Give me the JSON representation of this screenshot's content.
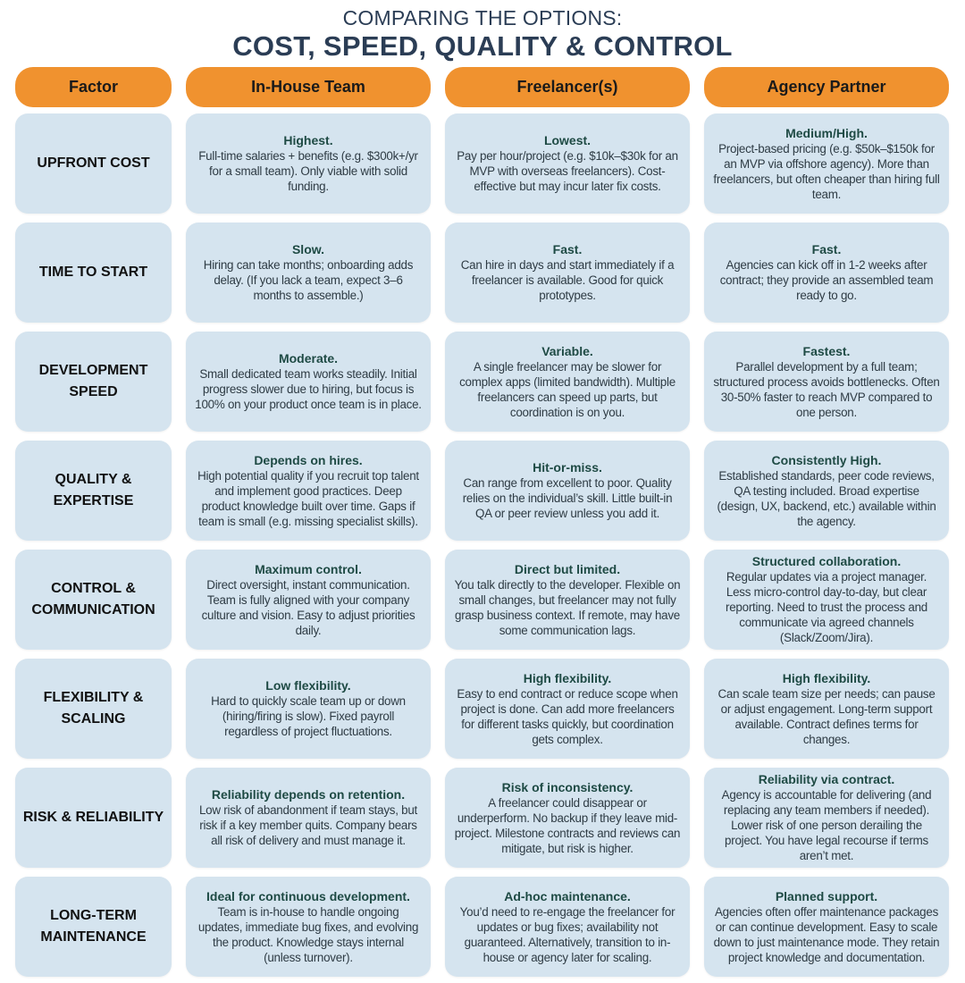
{
  "title": {
    "line1": "COMPARING THE OPTIONS:",
    "line2": "COST, SPEED, QUALITY & CONTROL"
  },
  "colors": {
    "header_bg": "#f0922f",
    "card_bg": "#d5e4ef",
    "title": "#2b3d55",
    "cell_heading": "#1e4a44"
  },
  "headers": [
    "Factor",
    "In-House Team",
    "Freelancer(s)",
    "Agency Partner"
  ],
  "rows": [
    {
      "factor": "UPFRONT COST",
      "cells": [
        {
          "h": "Highest.",
          "b": "Full-time salaries + benefits (e.g. $300k+/yr for a small team). Only viable with solid funding."
        },
        {
          "h": "Lowest.",
          "b": "Pay per hour/project (e.g. $10k–$30k for an MVP with overseas freelancers). Cost-effective but may incur later fix costs."
        },
        {
          "h": "Medium/High.",
          "b": "Project-based pricing (e.g. $50k–$150k for an MVP via offshore agency). More than freelancers, but often cheaper than hiring full team."
        }
      ]
    },
    {
      "factor": "TIME TO START",
      "cells": [
        {
          "h": "Slow.",
          "b": "Hiring can take months; onboarding adds delay. (If you lack a team, expect 3–6 months to assemble.)"
        },
        {
          "h": "Fast.",
          "b": "Can hire in days and start immediately if a freelancer is available. Good for quick prototypes."
        },
        {
          "h": "Fast.",
          "b": "Agencies can kick off in 1-2 weeks after contract; they provide an assembled team ready to go."
        }
      ]
    },
    {
      "factor": "DEVELOPMENT SPEED",
      "cells": [
        {
          "h": "Moderate.",
          "b": "Small dedicated team works steadily. Initial progress slower due to hiring, but focus is 100% on your product once team is in place."
        },
        {
          "h": "Variable.",
          "b": "A single freelancer may be slower for complex apps (limited bandwidth). Multiple freelancers can speed up parts, but coordination is on you."
        },
        {
          "h": "Fastest.",
          "b": "Parallel development by a full team; structured process avoids bottlenecks. Often 30-50% faster to reach MVP compared to one person."
        }
      ]
    },
    {
      "factor": "QUALITY & EXPERTISE",
      "cells": [
        {
          "h": "Depends on hires.",
          "b": "High potential quality if you recruit top talent and implement good practices. Deep product knowledge built over time. Gaps if team is small (e.g. missing specialist skills)."
        },
        {
          "h": "Hit-or-miss.",
          "b": "Can range from excellent to poor. Quality relies on the individual’s skill. Little built-in QA or peer review unless you add it."
        },
        {
          "h": "Consistently High.",
          "b": "Established standards, peer code reviews, QA testing included. Broad expertise (design, UX, backend, etc.) available within the agency."
        }
      ]
    },
    {
      "factor": "CONTROL & COMMUNICATION",
      "cells": [
        {
          "h": "Maximum control.",
          "b": "Direct oversight, instant communication. Team is fully aligned with your company culture and vision. Easy to adjust priorities daily."
        },
        {
          "h": "Direct but limited.",
          "b": "You talk directly to the developer. Flexible on small changes, but freelancer may not fully grasp business context. If remote, may have some communication lags."
        },
        {
          "h": "Structured collaboration.",
          "b": "Regular updates via a project manager. Less micro-control day-to-day, but clear reporting. Need to trust the process and communicate via agreed channels (Slack/Zoom/Jira)."
        }
      ]
    },
    {
      "factor": "FLEXIBILITY & SCALING",
      "cells": [
        {
          "h": "Low flexibility.",
          "b": "Hard to quickly scale team up or down (hiring/firing is slow). Fixed payroll regardless of project fluctuations."
        },
        {
          "h": "High flexibility.",
          "b": "Easy to end contract or reduce scope when project is done. Can add more freelancers for different tasks quickly, but coordination gets complex."
        },
        {
          "h": "High flexibility.",
          "b": "Can scale team size per needs; can pause or adjust engagement. Long-term support available. Contract defines terms for changes."
        }
      ]
    },
    {
      "factor": "RISK & RELIABILITY",
      "cells": [
        {
          "h": "Reliability depends on retention.",
          "b": "Low risk of abandonment if team stays, but risk if a key member quits. Company bears all risk of delivery and must manage it."
        },
        {
          "h": "Risk of inconsistency.",
          "b": "A freelancer could disappear or underperform. No backup if they leave mid-project. Milestone contracts and reviews can mitigate, but risk is higher."
        },
        {
          "h": "Reliability via contract.",
          "b": "Agency is accountable for delivering (and replacing any team members if needed). Lower risk of one person derailing the project. You have legal recourse if terms aren’t met."
        }
      ]
    },
    {
      "factor": "LONG-TERM MAINTENANCE",
      "cells": [
        {
          "h": "Ideal for continuous development.",
          "b": "Team is in-house to handle ongoing updates, immediate bug fixes, and evolving the product. Knowledge stays internal (unless turnover)."
        },
        {
          "h": "Ad-hoc maintenance.",
          "b": "You’d need to re-engage the freelancer for updates or bug fixes; availability not guaranteed. Alternatively, transition to in-house or agency later for scaling."
        },
        {
          "h": "Planned support.",
          "b": "Agencies often offer maintenance packages or can continue development. Easy to scale down to just maintenance mode. They retain project knowledge and documentation."
        }
      ]
    }
  ]
}
